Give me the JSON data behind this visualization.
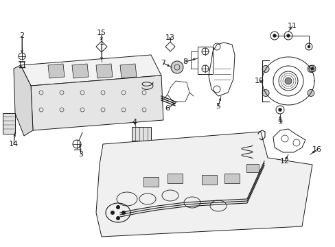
{
  "bg_color": "#ffffff",
  "line_color": "#1a1a1a",
  "gray_fill": "#e8e8e8",
  "light_fill": "#f0f0f0"
}
